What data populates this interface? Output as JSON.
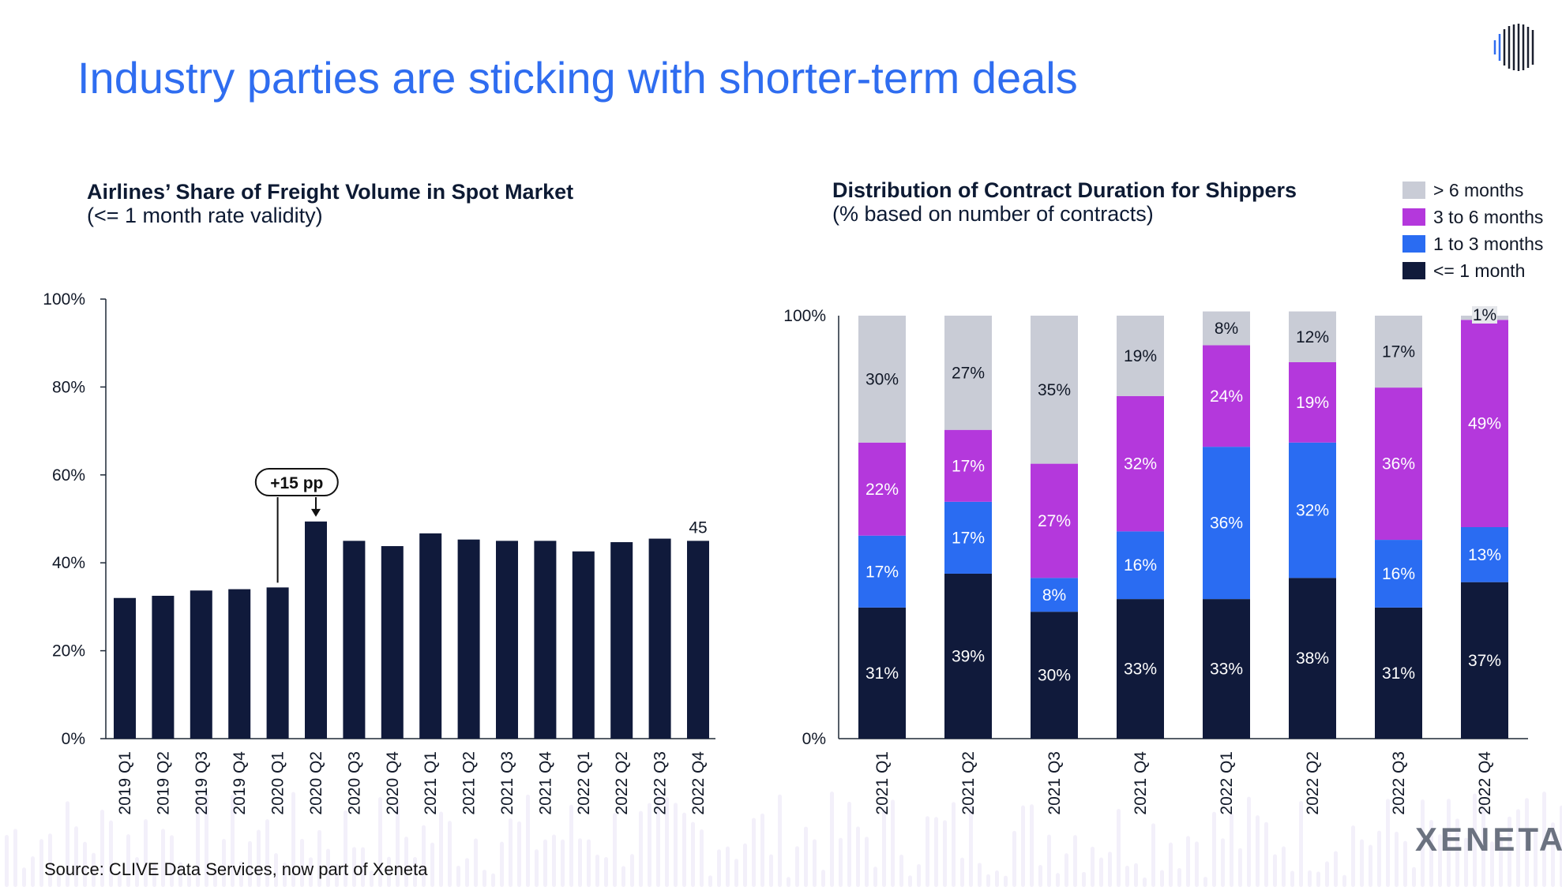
{
  "title": "Industry parties are sticking with shorter-term deals",
  "source": "Source: CLIVE Data Services, now part of Xeneta",
  "brand": "XENETA",
  "colors": {
    "title": "#2f6df0",
    "navy": "#101a3b",
    "blue": "#2a6cf2",
    "purple": "#b438dc",
    "grey": "#c9ccd6",
    "axis": "#1f2937"
  },
  "chart_data": [
    {
      "id": "spot-share",
      "type": "bar",
      "title": "Airlines’ Share of Freight Volume in Spot Market",
      "subtitle": "(<= 1 month rate validity)",
      "categories": [
        "2019 Q1",
        "2019 Q2",
        "2019 Q3",
        "2019 Q4",
        "2020 Q1",
        "2020 Q2",
        "2020 Q3",
        "2020 Q4",
        "2021 Q1",
        "2021 Q2",
        "2021 Q3",
        "2021 Q4",
        "2022 Q1",
        "2022 Q2",
        "2022 Q3",
        "2022 Q4"
      ],
      "values": [
        32,
        32.5,
        33.7,
        34,
        34.4,
        49.4,
        45,
        43.8,
        46.7,
        45.3,
        45,
        45,
        42.6,
        44.7,
        45.5,
        45
      ],
      "ylim": [
        0,
        100
      ],
      "yticks": [
        "0%",
        "20%",
        "40%",
        "60%",
        "80%",
        "100%"
      ],
      "data_labels": [
        {
          "category": "2022 Q4",
          "text": "45"
        }
      ],
      "annotation": {
        "text": "+15 pp",
        "from": "2020 Q1",
        "to": "2020 Q2"
      },
      "bar_color": "#101a3b"
    },
    {
      "id": "contract-duration",
      "type": "bar",
      "stacked": true,
      "title": "Distribution of Contract Duration for Shippers",
      "subtitle": "(% based on number of contracts)",
      "categories": [
        "2021 Q1",
        "2021 Q2",
        "2021 Q3",
        "2021 Q4",
        "2022 Q1",
        "2022 Q2",
        "2022 Q3",
        "2022 Q4"
      ],
      "ylim": [
        0,
        100
      ],
      "yticks": [
        "0%",
        "100%"
      ],
      "legend": [
        "> 6 months",
        "3 to 6 months",
        "1 to 3 months",
        "<= 1 month"
      ],
      "series": [
        {
          "name": "<= 1 month",
          "color": "#101a3b",
          "values": [
            31,
            39,
            30,
            33,
            33,
            38,
            31,
            37
          ],
          "labels": [
            "31%",
            "39%",
            "30%",
            "33%",
            "33%",
            "38%",
            "31%",
            "37%"
          ]
        },
        {
          "name": "1 to 3 months",
          "color": "#2a6cf2",
          "values": [
            17,
            17,
            8,
            16,
            36,
            32,
            16,
            13
          ],
          "labels": [
            "17%",
            "17%",
            "8%",
            "16%",
            "36%",
            "32%",
            "16%",
            "13%"
          ]
        },
        {
          "name": "3 to 6 months",
          "color": "#b438dc",
          "values": [
            22,
            17,
            27,
            32,
            24,
            19,
            36,
            49
          ],
          "labels": [
            "22%",
            "17%",
            "27%",
            "32%",
            "24%",
            "19%",
            "36%",
            "49%"
          ]
        },
        {
          "name": "> 6 months",
          "color": "#c9ccd6",
          "values": [
            30,
            27,
            35,
            19,
            8,
            12,
            17,
            1
          ],
          "labels": [
            "30%",
            "27%",
            "35%",
            "19%",
            "8%",
            "12%",
            "17%",
            "1%"
          ]
        }
      ]
    }
  ]
}
